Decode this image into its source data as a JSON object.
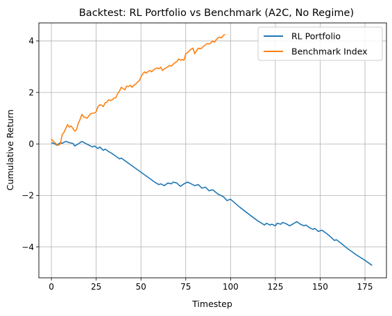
{
  "chart_data": {
    "type": "line",
    "title": "Backtest: RL Portfolio vs Benchmark (A2C, No Regime)",
    "xlabel": "Timestep",
    "ylabel": "Cumulative Return",
    "xlim": [
      -7,
      187
    ],
    "ylim": [
      -5.2,
      4.7
    ],
    "xticks": [
      0,
      25,
      50,
      75,
      100,
      125,
      150,
      175
    ],
    "yticks": [
      -4,
      -2,
      0,
      2,
      4
    ],
    "grid": true,
    "legend_position": "upper-right",
    "series": [
      {
        "name": "RL Portfolio",
        "color": "#1f77b4",
        "points": [
          [
            0,
            0.05
          ],
          [
            2,
            0.0
          ],
          [
            3,
            -0.05
          ],
          [
            5,
            0.05
          ],
          [
            6,
            0.02
          ],
          [
            8,
            0.1
          ],
          [
            10,
            0.05
          ],
          [
            12,
            0.02
          ],
          [
            13,
            -0.08
          ],
          [
            15,
            0.0
          ],
          [
            17,
            0.1
          ],
          [
            19,
            0.02
          ],
          [
            21,
            -0.05
          ],
          [
            23,
            -0.12
          ],
          [
            24,
            -0.08
          ],
          [
            26,
            -0.18
          ],
          [
            27,
            -0.12
          ],
          [
            29,
            -0.25
          ],
          [
            30,
            -0.2
          ],
          [
            32,
            -0.3
          ],
          [
            34,
            -0.38
          ],
          [
            36,
            -0.48
          ],
          [
            38,
            -0.58
          ],
          [
            39,
            -0.55
          ],
          [
            41,
            -0.65
          ],
          [
            45,
            -0.85
          ],
          [
            50,
            -1.1
          ],
          [
            55,
            -1.35
          ],
          [
            58,
            -1.5
          ],
          [
            60,
            -1.58
          ],
          [
            61,
            -1.55
          ],
          [
            63,
            -1.62
          ],
          [
            65,
            -1.52
          ],
          [
            67,
            -1.55
          ],
          [
            68,
            -1.48
          ],
          [
            70,
            -1.52
          ],
          [
            72,
            -1.65
          ],
          [
            74,
            -1.55
          ],
          [
            76,
            -1.48
          ],
          [
            78,
            -1.55
          ],
          [
            80,
            -1.62
          ],
          [
            82,
            -1.58
          ],
          [
            84,
            -1.72
          ],
          [
            86,
            -1.68
          ],
          [
            88,
            -1.82
          ],
          [
            90,
            -1.78
          ],
          [
            93,
            -1.95
          ],
          [
            96,
            -2.05
          ],
          [
            98,
            -2.2
          ],
          [
            100,
            -2.15
          ],
          [
            105,
            -2.45
          ],
          [
            110,
            -2.72
          ],
          [
            115,
            -2.98
          ],
          [
            119,
            -3.15
          ],
          [
            120,
            -3.08
          ],
          [
            122,
            -3.15
          ],
          [
            123,
            -3.12
          ],
          [
            125,
            -3.18
          ],
          [
            126,
            -3.08
          ],
          [
            128,
            -3.12
          ],
          [
            129,
            -3.05
          ],
          [
            131,
            -3.1
          ],
          [
            133,
            -3.18
          ],
          [
            135,
            -3.1
          ],
          [
            137,
            -3.02
          ],
          [
            139,
            -3.12
          ],
          [
            141,
            -3.18
          ],
          [
            142,
            -3.15
          ],
          [
            144,
            -3.25
          ],
          [
            146,
            -3.32
          ],
          [
            147,
            -3.28
          ],
          [
            149,
            -3.4
          ],
          [
            151,
            -3.35
          ],
          [
            154,
            -3.5
          ],
          [
            156,
            -3.62
          ],
          [
            158,
            -3.75
          ],
          [
            159,
            -3.72
          ],
          [
            161,
            -3.82
          ],
          [
            165,
            -4.05
          ],
          [
            170,
            -4.3
          ],
          [
            175,
            -4.52
          ],
          [
            179,
            -4.72
          ]
        ]
      },
      {
        "name": "Benchmark Index",
        "color": "#ff7f0e",
        "points": [
          [
            0,
            0.2
          ],
          [
            1,
            0.1
          ],
          [
            2,
            0.05
          ],
          [
            3,
            -0.02
          ],
          [
            4,
            -0.05
          ],
          [
            5,
            0.0
          ],
          [
            6,
            0.35
          ],
          [
            7,
            0.45
          ],
          [
            8,
            0.6
          ],
          [
            9,
            0.75
          ],
          [
            10,
            0.65
          ],
          [
            11,
            0.7
          ],
          [
            12,
            0.6
          ],
          [
            13,
            0.5
          ],
          [
            14,
            0.55
          ],
          [
            15,
            0.8
          ],
          [
            16,
            0.95
          ],
          [
            17,
            1.15
          ],
          [
            18,
            1.05
          ],
          [
            20,
            1.0
          ],
          [
            21,
            1.1
          ],
          [
            22,
            1.18
          ],
          [
            24,
            1.2
          ],
          [
            25,
            1.25
          ],
          [
            26,
            1.45
          ],
          [
            27,
            1.52
          ],
          [
            28,
            1.5
          ],
          [
            29,
            1.45
          ],
          [
            30,
            1.6
          ],
          [
            31,
            1.62
          ],
          [
            32,
            1.72
          ],
          [
            33,
            1.68
          ],
          [
            34,
            1.72
          ],
          [
            35,
            1.78
          ],
          [
            36,
            1.8
          ],
          [
            37,
            1.95
          ],
          [
            38,
            2.05
          ],
          [
            39,
            2.2
          ],
          [
            40,
            2.15
          ],
          [
            41,
            2.1
          ],
          [
            42,
            2.25
          ],
          [
            43,
            2.22
          ],
          [
            44,
            2.28
          ],
          [
            45,
            2.2
          ],
          [
            46,
            2.28
          ],
          [
            47,
            2.32
          ],
          [
            48,
            2.4
          ],
          [
            49,
            2.45
          ],
          [
            50,
            2.6
          ],
          [
            51,
            2.72
          ],
          [
            52,
            2.8
          ],
          [
            53,
            2.75
          ],
          [
            54,
            2.82
          ],
          [
            55,
            2.85
          ],
          [
            56,
            2.8
          ],
          [
            57,
            2.88
          ],
          [
            58,
            2.92
          ],
          [
            59,
            2.95
          ],
          [
            60,
            2.92
          ],
          [
            61,
            2.98
          ],
          [
            62,
            2.85
          ],
          [
            63,
            2.92
          ],
          [
            64,
            2.95
          ],
          [
            65,
            3.0
          ],
          [
            66,
            3.05
          ],
          [
            67,
            3.02
          ],
          [
            68,
            3.1
          ],
          [
            69,
            3.15
          ],
          [
            70,
            3.2
          ],
          [
            71,
            3.3
          ],
          [
            72,
            3.25
          ],
          [
            73,
            3.28
          ],
          [
            74,
            3.25
          ],
          [
            75,
            3.5
          ],
          [
            76,
            3.55
          ],
          [
            77,
            3.62
          ],
          [
            78,
            3.68
          ],
          [
            79,
            3.72
          ],
          [
            80,
            3.5
          ],
          [
            81,
            3.62
          ],
          [
            82,
            3.72
          ],
          [
            83,
            3.7
          ],
          [
            84,
            3.72
          ],
          [
            85,
            3.8
          ],
          [
            86,
            3.85
          ],
          [
            87,
            3.9
          ],
          [
            88,
            3.88
          ],
          [
            89,
            3.92
          ],
          [
            90,
            4.0
          ],
          [
            91,
            3.95
          ],
          [
            92,
            4.05
          ],
          [
            93,
            4.12
          ],
          [
            94,
            4.15
          ],
          [
            95,
            4.12
          ],
          [
            96,
            4.22
          ],
          [
            97,
            4.25
          ]
        ]
      }
    ]
  }
}
